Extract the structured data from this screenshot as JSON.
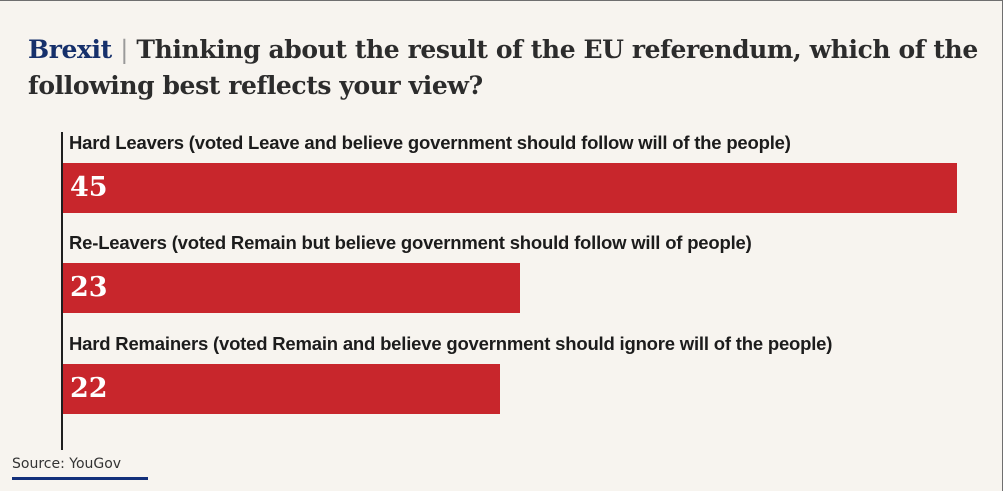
{
  "header": {
    "kicker": "Brexit",
    "separator": "|",
    "question": "Thinking about the result of the EU referendum, which of the following best reflects your view?"
  },
  "source": "Source: YouGov",
  "colors": {
    "bar": "#c8262c",
    "kicker": "#16306b",
    "background": "#f7f4ef"
  },
  "chart_data": {
    "type": "bar",
    "orientation": "horizontal",
    "title": "Brexit | Thinking about the result of the EU referendum, which of the following best reflects your view?",
    "categories": [
      "Hard Leavers (voted Leave and believe government should follow will of the people)",
      "Re-Leavers (voted Remain but believe government should follow will of people)",
      "Hard Remainers (voted Remain and believe government should ignore will of the people)"
    ],
    "values": [
      45,
      23,
      22
    ],
    "xlim": [
      0,
      45
    ],
    "grid": false,
    "legend": false
  }
}
